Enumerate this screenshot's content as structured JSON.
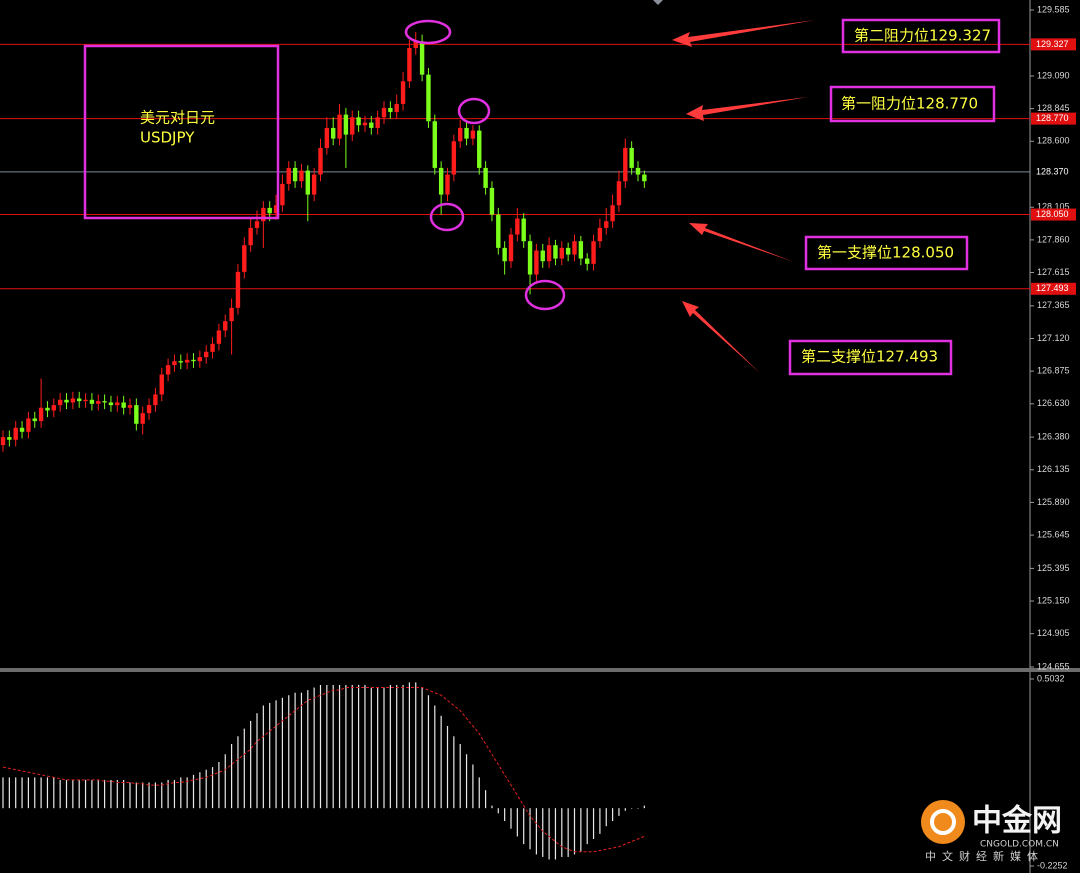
{
  "chart_data": [
    {
      "type": "candlestick",
      "up_color": "#ff1c1c",
      "down_color": "#7cff1a",
      "ylim": [
        124.655,
        129.66
      ],
      "yticks": [
        129.585,
        {
          "value": 129.09,
          "label": "129.090"
        },
        128.845,
        {
          "value": 128.6,
          "label": "128.600"
        },
        128.105,
        {
          "value": 127.86,
          "label": "127.860"
        },
        127.615,
        127.365,
        {
          "value": 127.12,
          "label": "127.120"
        },
        126.875,
        {
          "value": 126.63,
          "label": "126.630"
        },
        {
          "value": 126.38,
          "label": "126.380"
        },
        126.135,
        {
          "value": 125.89,
          "label": "125.890"
        },
        125.645,
        125.395,
        {
          "value": 125.15,
          "label": "125.150"
        },
        124.905,
        124.655
      ],
      "levels": [
        {
          "value": 129.327,
          "label": "129.327",
          "color": "#e01010"
        },
        {
          "value": 128.77,
          "label": "128.770",
          "color": "#e01010"
        },
        {
          "value": 128.37,
          "label": "128.370",
          "color": "#7d8a9a"
        },
        {
          "value": 128.05,
          "label": "128.050",
          "color": "#e01010"
        },
        {
          "value": 127.493,
          "label": "127.493",
          "color": "#e01010"
        }
      ],
      "annotations": [
        {
          "text": "美元对日元"
        },
        {
          "text": "USDJPY"
        },
        {
          "text": "第二阻力位129.327"
        },
        {
          "text": "第一阻力位128.770"
        },
        {
          "text": "第一支撑位128.050"
        },
        {
          "text": "第二支撑位127.493"
        }
      ],
      "open": [
        126.32,
        126.38,
        126.36,
        126.45,
        126.42,
        126.52,
        126.5,
        126.6,
        126.58,
        126.62,
        126.66,
        126.64,
        126.67,
        126.65,
        126.66,
        126.63,
        126.65,
        126.64,
        126.62,
        126.64,
        126.6,
        126.62,
        126.48,
        126.56,
        126.62,
        126.7,
        126.85,
        126.92,
        126.95,
        126.94,
        126.96,
        126.95,
        126.98,
        127.02,
        127.08,
        127.18,
        127.25,
        127.35,
        127.62,
        127.82,
        127.95,
        128.0,
        128.1,
        128.06,
        128.12,
        128.28,
        128.4,
        128.3,
        128.38,
        128.2,
        128.35,
        128.55,
        128.7,
        128.62,
        128.8,
        128.65,
        128.78,
        128.72,
        128.74,
        128.7,
        128.78,
        128.85,
        128.82,
        128.88,
        129.05,
        129.3,
        129.35,
        129.1,
        128.75,
        128.4,
        128.2,
        128.35,
        128.6,
        128.7,
        128.62,
        128.68,
        128.4,
        128.25,
        128.05,
        127.8,
        127.7,
        127.9,
        128.02,
        127.85,
        127.6,
        127.78,
        127.7,
        127.82,
        127.72,
        127.8,
        127.75,
        127.85,
        127.72,
        127.68,
        127.85,
        127.95,
        128.0,
        128.12,
        128.3,
        128.55,
        128.4,
        128.35
      ],
      "high": [
        126.43,
        126.43,
        126.5,
        126.5,
        126.57,
        126.57,
        126.82,
        126.65,
        126.67,
        126.71,
        126.71,
        126.72,
        126.72,
        126.71,
        126.71,
        126.7,
        126.7,
        126.69,
        126.69,
        126.69,
        126.67,
        126.67,
        126.61,
        126.67,
        126.75,
        126.9,
        126.97,
        127.0,
        127.0,
        127.01,
        127.01,
        127.03,
        127.07,
        127.13,
        127.23,
        127.3,
        127.42,
        127.68,
        127.88,
        128.02,
        128.08,
        128.15,
        128.15,
        128.2,
        128.35,
        128.45,
        128.45,
        128.43,
        128.42,
        128.4,
        128.62,
        128.78,
        128.78,
        128.88,
        128.85,
        128.83,
        128.83,
        128.79,
        128.79,
        128.83,
        128.9,
        128.9,
        128.95,
        129.12,
        129.36,
        129.42,
        129.4,
        129.15,
        128.8,
        128.45,
        128.4,
        128.65,
        128.76,
        128.75,
        128.72,
        128.72,
        128.45,
        128.3,
        128.1,
        127.85,
        127.95,
        128.1,
        128.06,
        127.9,
        127.83,
        127.83,
        127.88,
        127.86,
        127.85,
        127.84,
        127.9,
        127.89,
        127.76,
        127.9,
        128.02,
        128.1,
        128.2,
        128.38,
        128.62,
        128.6,
        128.45,
        128.38
      ],
      "low": [
        126.27,
        126.31,
        126.31,
        126.37,
        126.37,
        126.45,
        126.45,
        126.53,
        126.53,
        126.57,
        126.59,
        126.59,
        126.6,
        126.6,
        126.58,
        126.58,
        126.59,
        126.57,
        126.57,
        126.55,
        126.55,
        126.43,
        126.4,
        126.51,
        126.57,
        126.65,
        126.8,
        126.87,
        126.89,
        126.89,
        126.9,
        126.9,
        126.93,
        126.97,
        127.03,
        127.13,
        127.0,
        127.3,
        127.57,
        127.77,
        127.9,
        127.8,
        128.0,
        128.01,
        128.07,
        128.23,
        128.25,
        128.25,
        128.0,
        128.15,
        128.3,
        128.5,
        128.57,
        128.57,
        128.4,
        128.6,
        128.67,
        128.67,
        128.65,
        128.65,
        128.73,
        128.77,
        128.77,
        128.83,
        129.0,
        129.25,
        129.05,
        128.7,
        128.35,
        128.05,
        128.15,
        128.3,
        128.55,
        128.57,
        128.57,
        128.35,
        128.2,
        128.0,
        127.75,
        127.6,
        127.65,
        127.85,
        127.8,
        127.45,
        127.55,
        127.65,
        127.65,
        127.67,
        127.67,
        127.7,
        127.7,
        127.67,
        127.63,
        127.63,
        127.8,
        127.9,
        127.95,
        128.07,
        128.25,
        128.35,
        128.3,
        128.25
      ],
      "close": [
        126.38,
        126.36,
        126.45,
        126.42,
        126.52,
        126.5,
        126.6,
        126.58,
        126.62,
        126.66,
        126.64,
        126.67,
        126.65,
        126.66,
        126.63,
        126.65,
        126.64,
        126.62,
        126.64,
        126.6,
        126.62,
        126.48,
        126.56,
        126.62,
        126.7,
        126.85,
        126.92,
        126.95,
        126.94,
        126.96,
        126.95,
        126.98,
        127.02,
        127.08,
        127.18,
        127.25,
        127.35,
        127.62,
        127.82,
        127.95,
        128.0,
        128.1,
        128.06,
        128.12,
        128.28,
        128.4,
        128.3,
        128.38,
        128.2,
        128.35,
        128.55,
        128.7,
        128.62,
        128.8,
        128.65,
        128.78,
        128.72,
        128.74,
        128.7,
        128.78,
        128.85,
        128.82,
        128.88,
        129.05,
        129.3,
        129.35,
        129.1,
        128.75,
        128.4,
        128.2,
        128.35,
        128.6,
        128.7,
        128.62,
        128.68,
        128.4,
        128.25,
        128.05,
        127.8,
        127.7,
        127.9,
        128.02,
        127.85,
        127.6,
        127.78,
        127.7,
        127.82,
        127.72,
        127.8,
        127.75,
        127.85,
        127.72,
        127.68,
        127.85,
        127.95,
        128.0,
        128.12,
        128.3,
        128.55,
        128.4,
        128.35,
        128.3
      ]
    },
    {
      "type": "bar",
      "color": "#e8e8e8",
      "ylim": [
        -0.2525,
        0.5305
      ],
      "yticks": [
        0.5032,
        -0.2252
      ],
      "values": [
        0.12,
        0.12,
        0.12,
        0.12,
        0.12,
        0.12,
        0.12,
        0.12,
        0.12,
        0.11,
        0.11,
        0.11,
        0.11,
        0.11,
        0.11,
        0.11,
        0.11,
        0.11,
        0.11,
        0.11,
        0.1,
        0.1,
        0.1,
        0.1,
        0.1,
        0.1,
        0.11,
        0.11,
        0.12,
        0.12,
        0.13,
        0.14,
        0.15,
        0.16,
        0.18,
        0.21,
        0.25,
        0.28,
        0.31,
        0.34,
        0.37,
        0.4,
        0.41,
        0.42,
        0.43,
        0.44,
        0.45,
        0.45,
        0.46,
        0.47,
        0.48,
        0.48,
        0.48,
        0.48,
        0.48,
        0.48,
        0.48,
        0.48,
        0.47,
        0.47,
        0.47,
        0.48,
        0.48,
        0.48,
        0.49,
        0.49,
        0.47,
        0.44,
        0.4,
        0.36,
        0.32,
        0.28,
        0.25,
        0.21,
        0.17,
        0.12,
        0.07,
        0.01,
        -0.02,
        -0.05,
        -0.08,
        -0.11,
        -0.14,
        -0.16,
        -0.18,
        -0.19,
        -0.2,
        -0.2,
        -0.19,
        -0.19,
        -0.18,
        -0.17,
        -0.14,
        -0.12,
        -0.1,
        -0.07,
        -0.05,
        -0.03,
        -0.01,
        0.0,
        0.0,
        0.01
      ],
      "lines": [
        {
          "color": "#e02020",
          "dashed": true,
          "values": [
            0.16,
            0.155,
            0.15,
            0.145,
            0.14,
            0.135,
            0.13,
            0.125,
            0.12,
            0.115,
            0.11,
            0.11,
            0.11,
            0.11,
            0.11,
            0.11,
            0.105,
            0.105,
            0.1,
            0.1,
            0.1,
            0.095,
            0.095,
            0.09,
            0.09,
            0.09,
            0.095,
            0.1,
            0.1,
            0.105,
            0.11,
            0.115,
            0.12,
            0.13,
            0.14,
            0.15,
            0.17,
            0.19,
            0.21,
            0.23,
            0.26,
            0.28,
            0.3,
            0.32,
            0.34,
            0.36,
            0.38,
            0.4,
            0.42,
            0.43,
            0.44,
            0.45,
            0.46,
            0.46,
            0.47,
            0.47,
            0.47,
            0.47,
            0.47,
            0.47,
            0.47,
            0.47,
            0.47,
            0.47,
            0.47,
            0.47,
            0.47,
            0.46,
            0.45,
            0.44,
            0.42,
            0.4,
            0.38,
            0.35,
            0.32,
            0.29,
            0.25,
            0.21,
            0.17,
            0.13,
            0.09,
            0.05,
            0.01,
            -0.03,
            -0.06,
            -0.09,
            -0.11,
            -0.13,
            -0.15,
            -0.16,
            -0.17,
            -0.17,
            -0.17,
            -0.17,
            -0.165,
            -0.16,
            -0.155,
            -0.15,
            -0.14,
            -0.13,
            -0.12,
            -0.11
          ]
        }
      ]
    }
  ],
  "watermark": {
    "logo": "中金网",
    "site": "CNGOLD.COM.CN",
    "slogan": "中文财经新媒体"
  }
}
